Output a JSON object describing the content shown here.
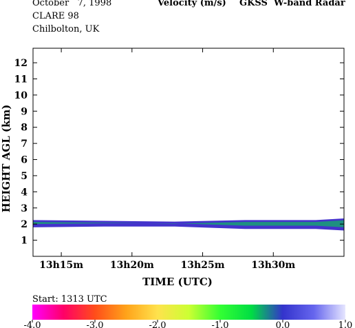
{
  "header": {
    "date": "October   7, 1998",
    "campaign": "CLARE 98",
    "location": "Chilbolton, UK",
    "quantity": "Velocity (m/s)",
    "instrument": "GKSS  W-band Radar"
  },
  "footer": {
    "start_label": "Start: 1313 UTC"
  },
  "chart_data": {
    "type": "heatmap",
    "title": "Velocity (m/s)",
    "xlabel": "TIME (UTC)",
    "ylabel": "HEIGHT AGL (km)",
    "x_range_minutes_after_1313": [
      0,
      22
    ],
    "x_ticks": [
      {
        "label": "13h15m",
        "minutes": 2
      },
      {
        "label": "13h20m",
        "minutes": 7
      },
      {
        "label": "13h25m",
        "minutes": 12
      },
      {
        "label": "13h30m",
        "minutes": 17
      }
    ],
    "ylim": [
      0,
      12.9
    ],
    "y_ticks": [
      1,
      2,
      3,
      4,
      5,
      6,
      7,
      8,
      9,
      10,
      11,
      12
    ],
    "layer": {
      "description": "cloud layer",
      "base_km": [
        {
          "t": 0,
          "h": 1.8
        },
        {
          "t": 5,
          "h": 1.85
        },
        {
          "t": 10,
          "h": 1.85
        },
        {
          "t": 15,
          "h": 1.7
        },
        {
          "t": 20,
          "h": 1.7
        },
        {
          "t": 22,
          "h": 1.6
        }
      ],
      "top_km": [
        {
          "t": 0,
          "h": 2.25
        },
        {
          "t": 5,
          "h": 2.2
        },
        {
          "t": 10,
          "h": 2.15
        },
        {
          "t": 15,
          "h": 2.25
        },
        {
          "t": 20,
          "h": 2.25
        },
        {
          "t": 22,
          "h": 2.35
        }
      ],
      "dominant_velocity_ms": -0.5
    },
    "colorbar": {
      "min": -4.0,
      "max": 1.0,
      "tick_labels": [
        "-4.0",
        "-3.0",
        "-2.0",
        "-1.0",
        "0.0",
        "1.0"
      ],
      "tick_values": [
        -4,
        -3,
        -2,
        -1,
        0,
        1
      ],
      "stops": [
        {
          "v": -4.0,
          "color": "#ff00ff"
        },
        {
          "v": -3.5,
          "color": "#ff0066"
        },
        {
          "v": -3.0,
          "color": "#ff4d1a"
        },
        {
          "v": -2.5,
          "color": "#ffa31a"
        },
        {
          "v": -2.0,
          "color": "#ffe24d"
        },
        {
          "v": -1.5,
          "color": "#ccff33"
        },
        {
          "v": -1.0,
          "color": "#33ff33"
        },
        {
          "v": -0.5,
          "color": "#00dd44"
        },
        {
          "v": 0.0,
          "color": "#3333cc"
        },
        {
          "v": 0.5,
          "color": "#6666ee"
        },
        {
          "v": 1.0,
          "color": "#e6e6ff"
        }
      ]
    }
  }
}
